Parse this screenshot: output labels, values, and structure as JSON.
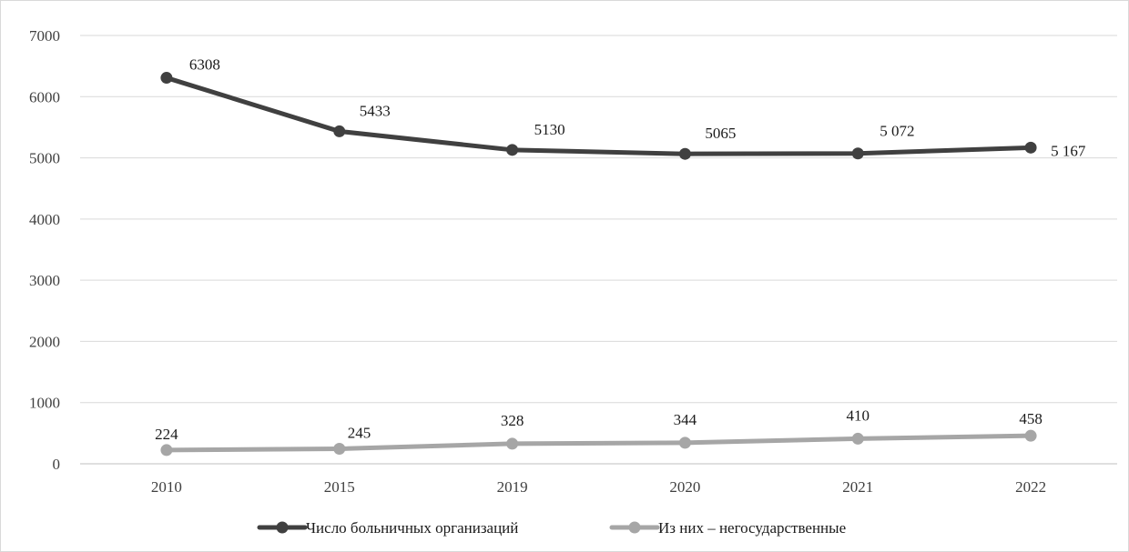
{
  "chart_data": {
    "type": "line",
    "categories": [
      "2010",
      "2015",
      "2019",
      "2020",
      "2021",
      "2022"
    ],
    "ylim": [
      0,
      7000
    ],
    "yticks": [
      0,
      1000,
      2000,
      3000,
      4000,
      5000,
      6000,
      7000
    ],
    "grid": true,
    "legend_position": "bottom",
    "series": [
      {
        "name": "Число больничных организаций",
        "values": [
          6308,
          5433,
          5130,
          5065,
          5072,
          5167
        ],
        "labels": [
          "6308",
          "5433",
          "5130",
          "5065",
          "5 072",
          "5 167"
        ],
        "color": "#404040"
      },
      {
        "name": "Из них – негосударственные",
        "values": [
          224,
          245,
          328,
          344,
          410,
          458
        ],
        "labels": [
          "224",
          "245",
          "328",
          "344",
          "410",
          "458"
        ],
        "color": "#a6a6a6"
      }
    ]
  }
}
